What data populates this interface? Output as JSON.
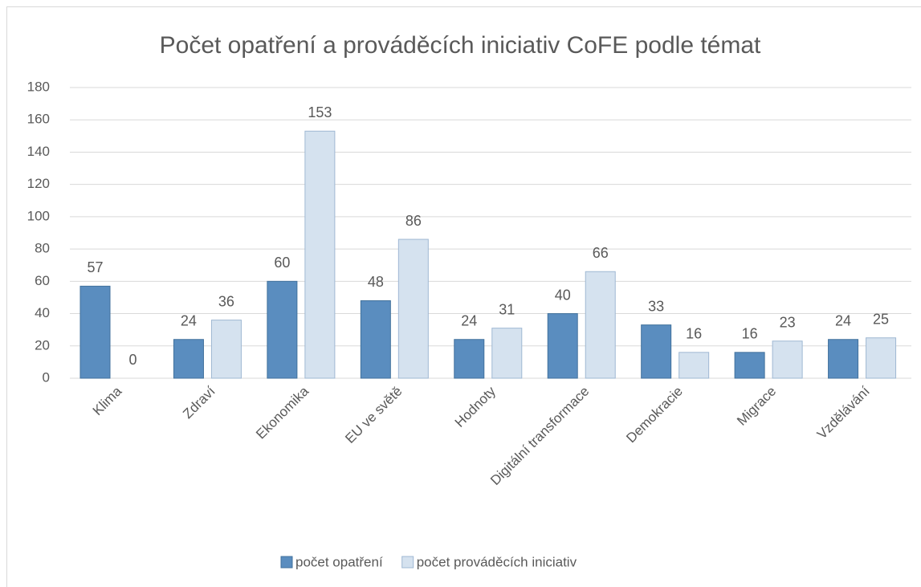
{
  "chart_data": {
    "type": "bar",
    "title": "Počet opatření a prováděcích iniciativ CoFE podle témat",
    "categories": [
      "Klima",
      "Zdraví",
      "Ekonomika",
      "EU ve světě",
      "Hodnoty",
      "Digitální transformace",
      "Demokracie",
      "Migrace",
      "Vzdělávání"
    ],
    "series": [
      {
        "name": "počet opatření",
        "color": "#5a8dbf",
        "values": [
          57,
          24,
          60,
          48,
          24,
          40,
          33,
          16,
          24
        ]
      },
      {
        "name": "počet prováděcích iniciativ",
        "color": "#d5e2ef",
        "values": [
          0,
          36,
          153,
          86,
          31,
          66,
          16,
          23,
          25
        ]
      }
    ],
    "ylim": [
      0,
      180
    ],
    "yticks": [
      0,
      20,
      40,
      60,
      80,
      100,
      120,
      140,
      160,
      180
    ],
    "grid": true,
    "legend": "bottom"
  }
}
